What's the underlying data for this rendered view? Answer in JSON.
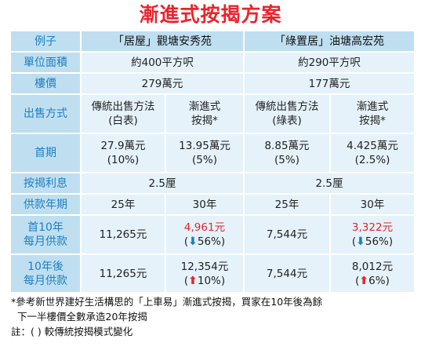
{
  "title": "漸進式按揭方案",
  "header": {
    "label": "例子",
    "col_a": "「居屋」觀塘安秀苑",
    "col_b": "「綠置居」油塘高宏苑"
  },
  "rows": {
    "area": {
      "label": "單位面積",
      "a": "約400平方呎",
      "b": "約290平方呎"
    },
    "price": {
      "label": "樓價",
      "a": "279萬元",
      "b": "177萬元"
    },
    "method": {
      "label": "出售方式",
      "a1": [
        "傳統出售方法",
        "(白表)"
      ],
      "a2": [
        "漸進式",
        "按揭*"
      ],
      "b1": [
        "傳統出售方法",
        "(綠表)"
      ],
      "b2": [
        "漸進式",
        "按揭*"
      ]
    },
    "down": {
      "label": "首期",
      "a1": [
        "27.9萬元",
        "(10%)"
      ],
      "a2": [
        "13.95萬元",
        "(5%)"
      ],
      "b1": [
        "8.85萬元",
        "(5%)"
      ],
      "b2": [
        "4.425萬元",
        "(2.5%)"
      ]
    },
    "rate": {
      "label": "按揭利息",
      "a": "2.5厘",
      "b": "2.5厘"
    },
    "term": {
      "label": "供款年期",
      "a1": "25年",
      "a2": "30年",
      "b1": "25年",
      "b2": "30年"
    },
    "first10": {
      "label": [
        "首10年",
        "每月供款"
      ],
      "a1": "11,265元",
      "a2_value": "4,961元",
      "a2_change": "56%",
      "b1": "7,544元",
      "b2_value": "3,322元",
      "b2_change": "56%"
    },
    "after10": {
      "label": [
        "10年後",
        "每月供款"
      ],
      "a1": "11,265元",
      "a2_value": "12,354元",
      "a2_change": "10%",
      "b1": "7,544元",
      "b2_value": "8,012元",
      "b2_change": "6%"
    }
  },
  "arrow_down_icon": "⬇",
  "arrow_up_icon": "⬆",
  "notes": {
    "line1": "*參考新世界建好生活構思的「上車易」漸進式按揭，買家在10年後為餘",
    "line2": "下一半樓價全數承造20年按揭",
    "line3": "註：( ) 較傳統按揭模式變化"
  },
  "colors": {
    "title": "#e8242b",
    "label_text": "#1e7fc0",
    "label_bg": "#bfdff1",
    "cell_bg": "#e5f2fa",
    "up": "#e8242b",
    "down": "#1e7fc0"
  }
}
